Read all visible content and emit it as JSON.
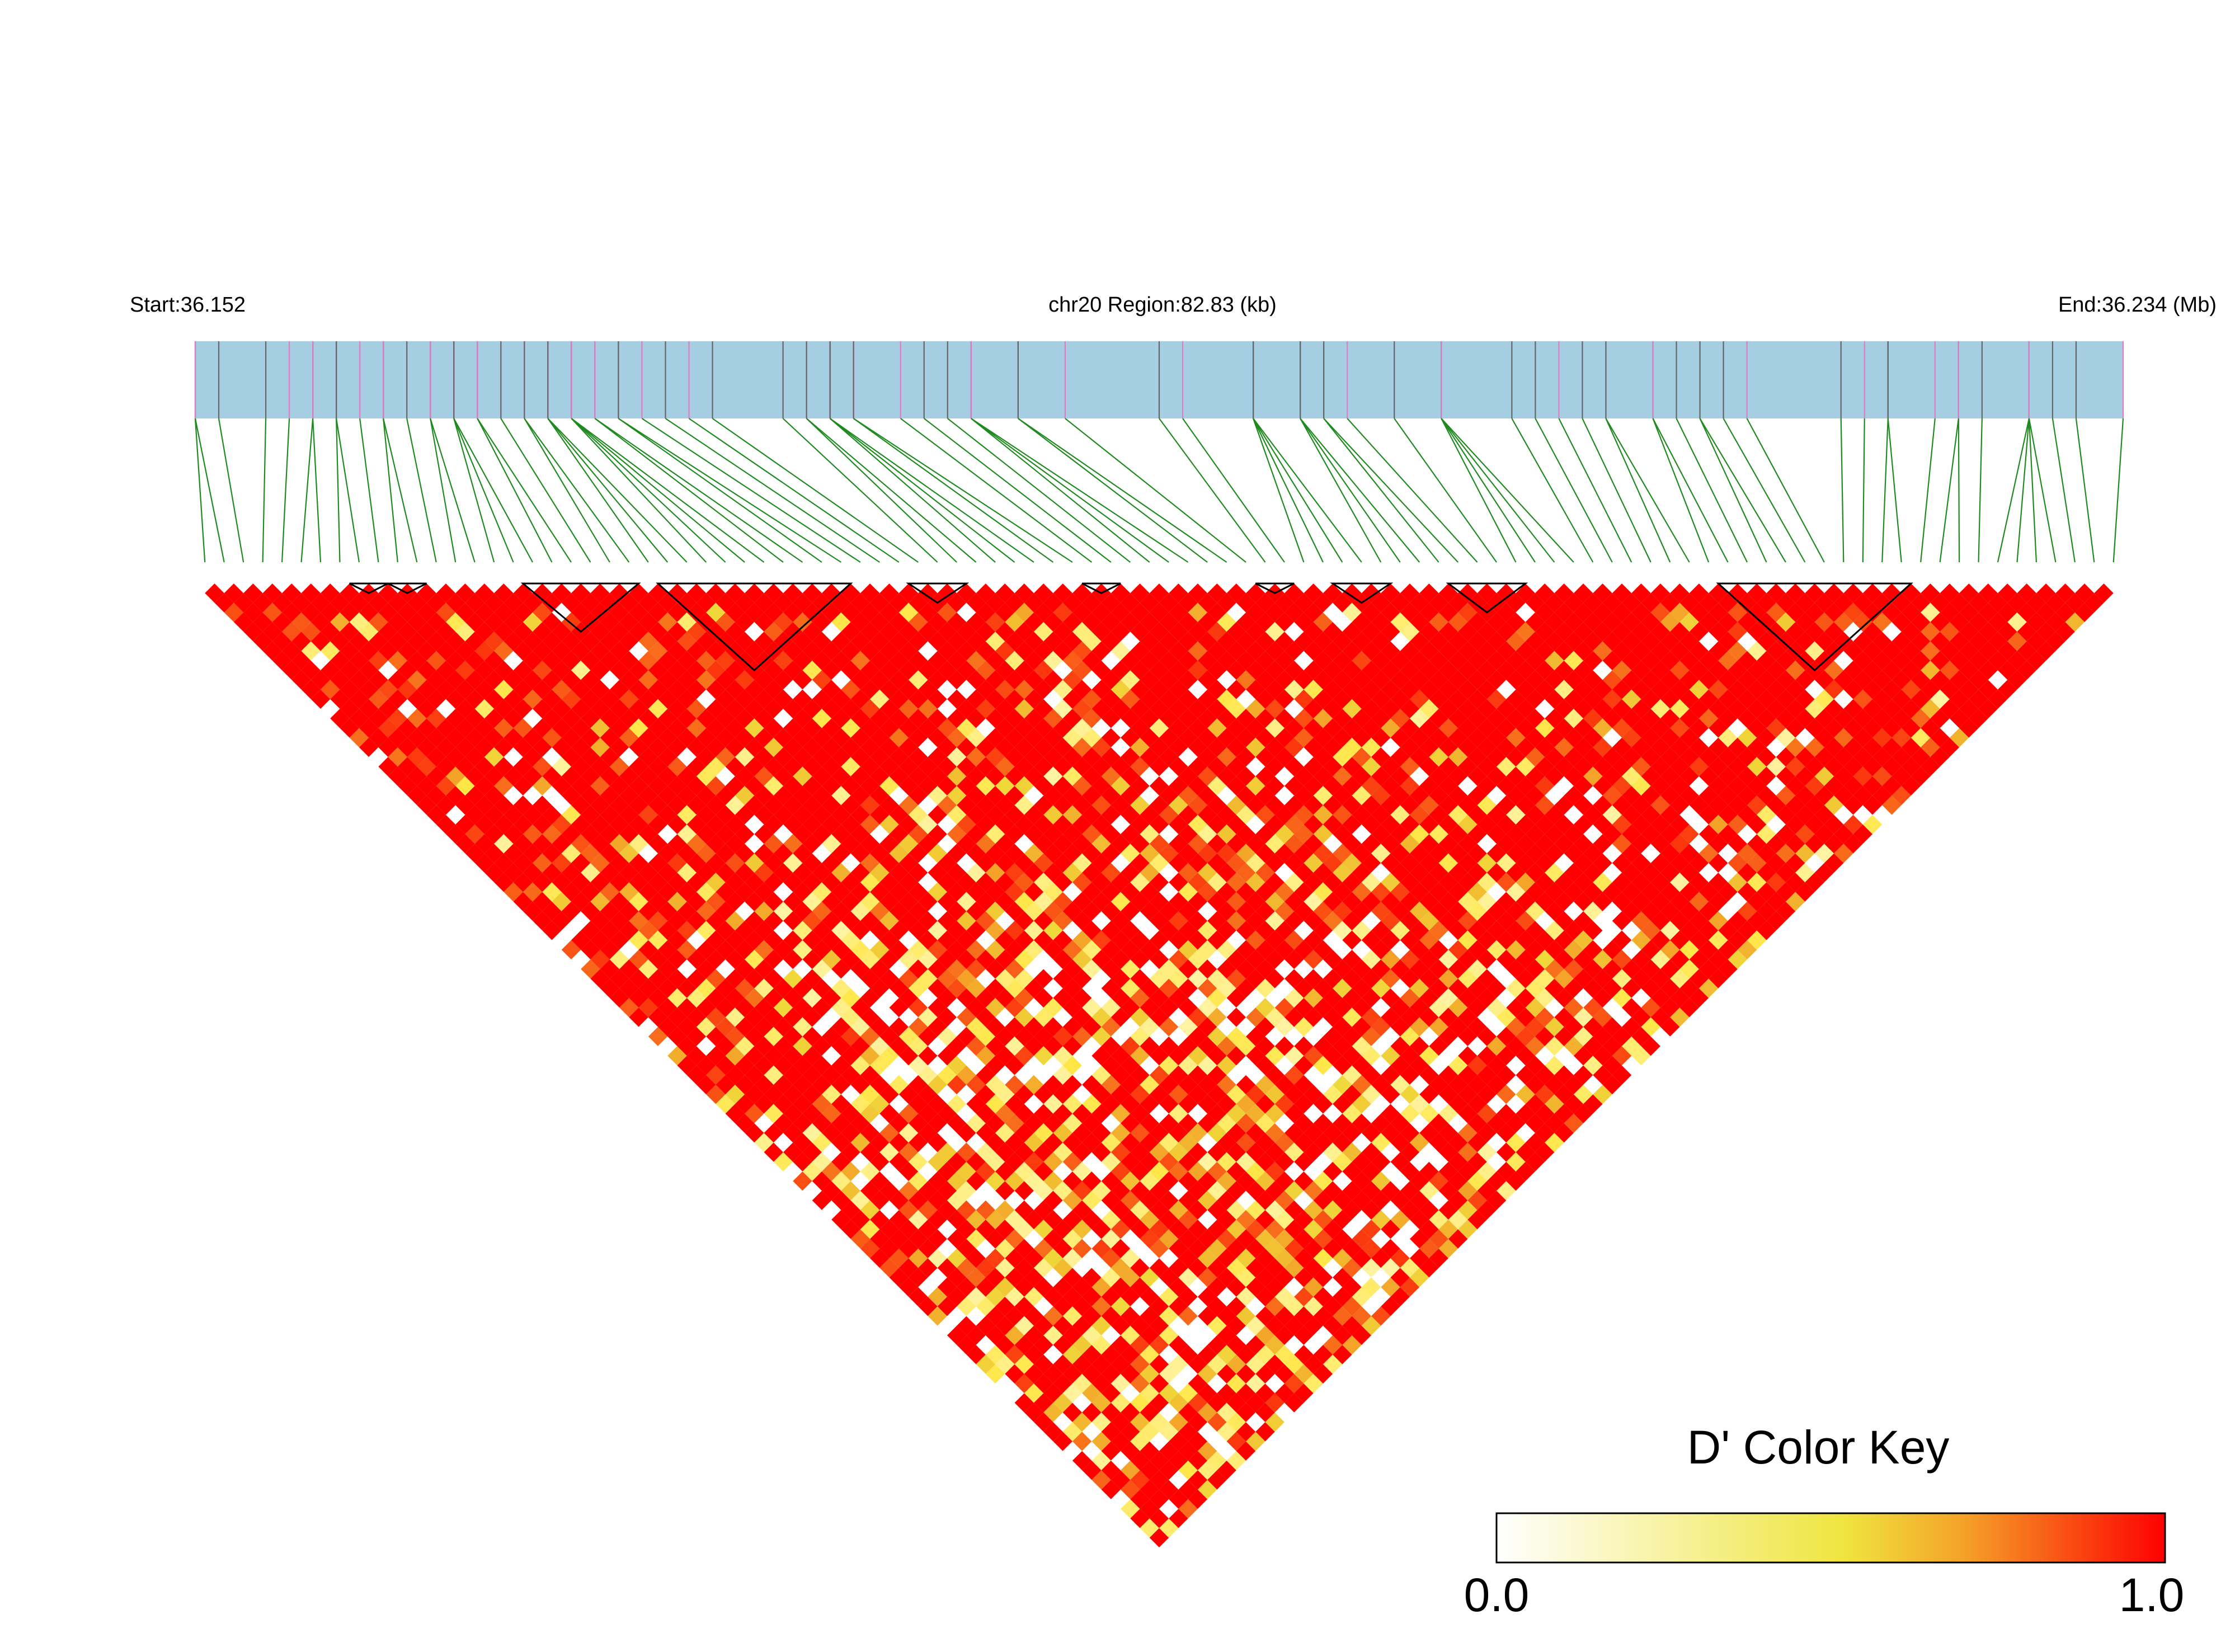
{
  "chart_data": {
    "type": "heatmap",
    "subtype": "linkage-disequilibrium-triangle",
    "chromosome": "chr20",
    "header": {
      "start_label": "Start:36.152",
      "region_label": "chr20 Region:82.83 (kb)",
      "end_label": "End:36.234 (Mb)"
    },
    "region_start_mb": 36.152,
    "region_end_mb": 36.234,
    "region_length_kb": 82.83,
    "snp_count": 100,
    "snp_positions_mb": [
      36.152,
      36.152,
      36.153,
      36.155,
      36.156,
      36.157,
      36.157,
      36.158,
      36.158,
      36.159,
      36.16,
      36.16,
      36.161,
      36.162,
      36.162,
      36.163,
      36.163,
      36.163,
      36.164,
      36.164,
      36.165,
      36.166,
      36.166,
      36.167,
      36.167,
      36.167,
      36.168,
      36.168,
      36.168,
      36.168,
      36.169,
      36.169,
      36.17,
      36.17,
      36.171,
      36.172,
      36.173,
      36.174,
      36.177,
      36.178,
      36.178,
      36.179,
      36.179,
      36.179,
      36.18,
      36.18,
      36.182,
      36.183,
      36.184,
      36.185,
      36.185,
      36.185,
      36.187,
      36.187,
      36.189,
      36.193,
      36.194,
      36.197,
      36.197,
      36.197,
      36.197,
      36.199,
      36.199,
      36.199,
      36.2,
      36.2,
      36.201,
      36.203,
      36.205,
      36.205,
      36.205,
      36.205,
      36.208,
      36.209,
      36.21,
      36.211,
      36.212,
      36.212,
      36.214,
      36.214,
      36.215,
      36.216,
      36.216,
      36.217,
      36.218,
      36.222,
      36.223,
      36.224,
      36.224,
      36.226,
      36.227,
      36.227,
      36.228,
      36.23,
      36.23,
      36.23,
      36.23,
      36.231,
      36.232,
      36.234
    ],
    "haplotype_blocks": [
      {
        "snps": [
          8,
          9
        ]
      },
      {
        "snps": [
          10,
          11
        ]
      },
      {
        "snps": [
          17,
          22
        ]
      },
      {
        "snps": [
          24,
          33
        ]
      },
      {
        "snps": [
          37,
          39
        ]
      },
      {
        "snps": [
          46,
          47
        ]
      },
      {
        "snps": [
          55,
          56
        ]
      },
      {
        "snps": [
          59,
          61
        ]
      },
      {
        "snps": [
          65,
          68
        ]
      },
      {
        "snps": [
          79,
          88
        ]
      }
    ],
    "d_prime_matrix_note": "pairwise D' values vary per SNP pair; the matrix is mostly high (red, D' near 1.0) with scattered yellow and white cells concentrated in the middle and lower part of the triangle",
    "d_prime_range": [
      0.0,
      1.0
    ],
    "color_key": {
      "title": "D' Color Key",
      "min_label": "0.0",
      "max_label": "1.0",
      "low_color": "#FFFFFF",
      "mid_color": "#F0E442",
      "high_color": "#FF0000"
    }
  },
  "colors": {
    "gene_bar": "#A6CEE3",
    "snp_tick_dark": "#666666",
    "snp_tick_pink": "#E07BC7",
    "connector": "#1F8A1F",
    "block_outline": "#000000"
  }
}
